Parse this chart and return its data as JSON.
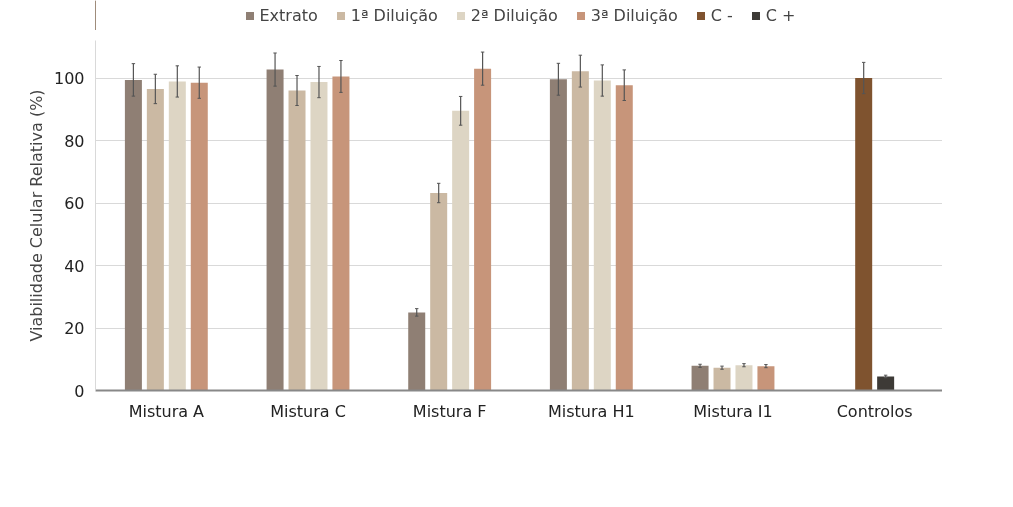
{
  "chart_data": {
    "type": "bar",
    "ylabel": "Viabilidade Celular Relativa (%)",
    "categories": [
      "Mistura A",
      "Mistura C",
      "Mistura F",
      "Mistura H1",
      "Mistura I1",
      "Controlos"
    ],
    "series": [
      {
        "name": "Extrato",
        "color": "#8f7f74",
        "values": [
          99.4,
          102.7,
          25,
          99.6,
          7.9,
          null
        ],
        "errors": [
          5.2,
          5.3,
          1.2,
          5.1,
          0.5,
          null
        ]
      },
      {
        "name": "1ª Diluição",
        "color": "#cbb9a3",
        "values": [
          96.5,
          96,
          63.2,
          102.2,
          7.3,
          null
        ],
        "errors": [
          4.7,
          4.8,
          3.1,
          5.1,
          0.5,
          null
        ]
      },
      {
        "name": "2ª Diluição",
        "color": "#ddd5c4",
        "values": [
          98.9,
          98.7,
          89.5,
          99.2,
          8.1,
          null
        ],
        "errors": [
          5,
          5,
          4.6,
          5,
          0.5,
          null
        ]
      },
      {
        "name": "3ª Diluição",
        "color": "#c7957a",
        "values": [
          98.5,
          100.5,
          103,
          97.7,
          7.8,
          null
        ],
        "errors": [
          5,
          5.1,
          5.3,
          4.9,
          0.5,
          null
        ]
      },
      {
        "name": "C -",
        "color": "#7f532f",
        "values": [
          null,
          null,
          null,
          null,
          null,
          100
        ],
        "errors": [
          null,
          null,
          null,
          null,
          null,
          5
        ]
      },
      {
        "name": "C +",
        "color": "#3d3a36",
        "values": [
          null,
          null,
          null,
          null,
          null,
          4.5
        ],
        "errors": [
          null,
          null,
          null,
          null,
          null,
          0.4
        ]
      }
    ],
    "ylim": [
      0,
      112
    ],
    "yticks": [
      0,
      20,
      40,
      60,
      80,
      100
    ],
    "grid": "y",
    "legend": "top"
  }
}
